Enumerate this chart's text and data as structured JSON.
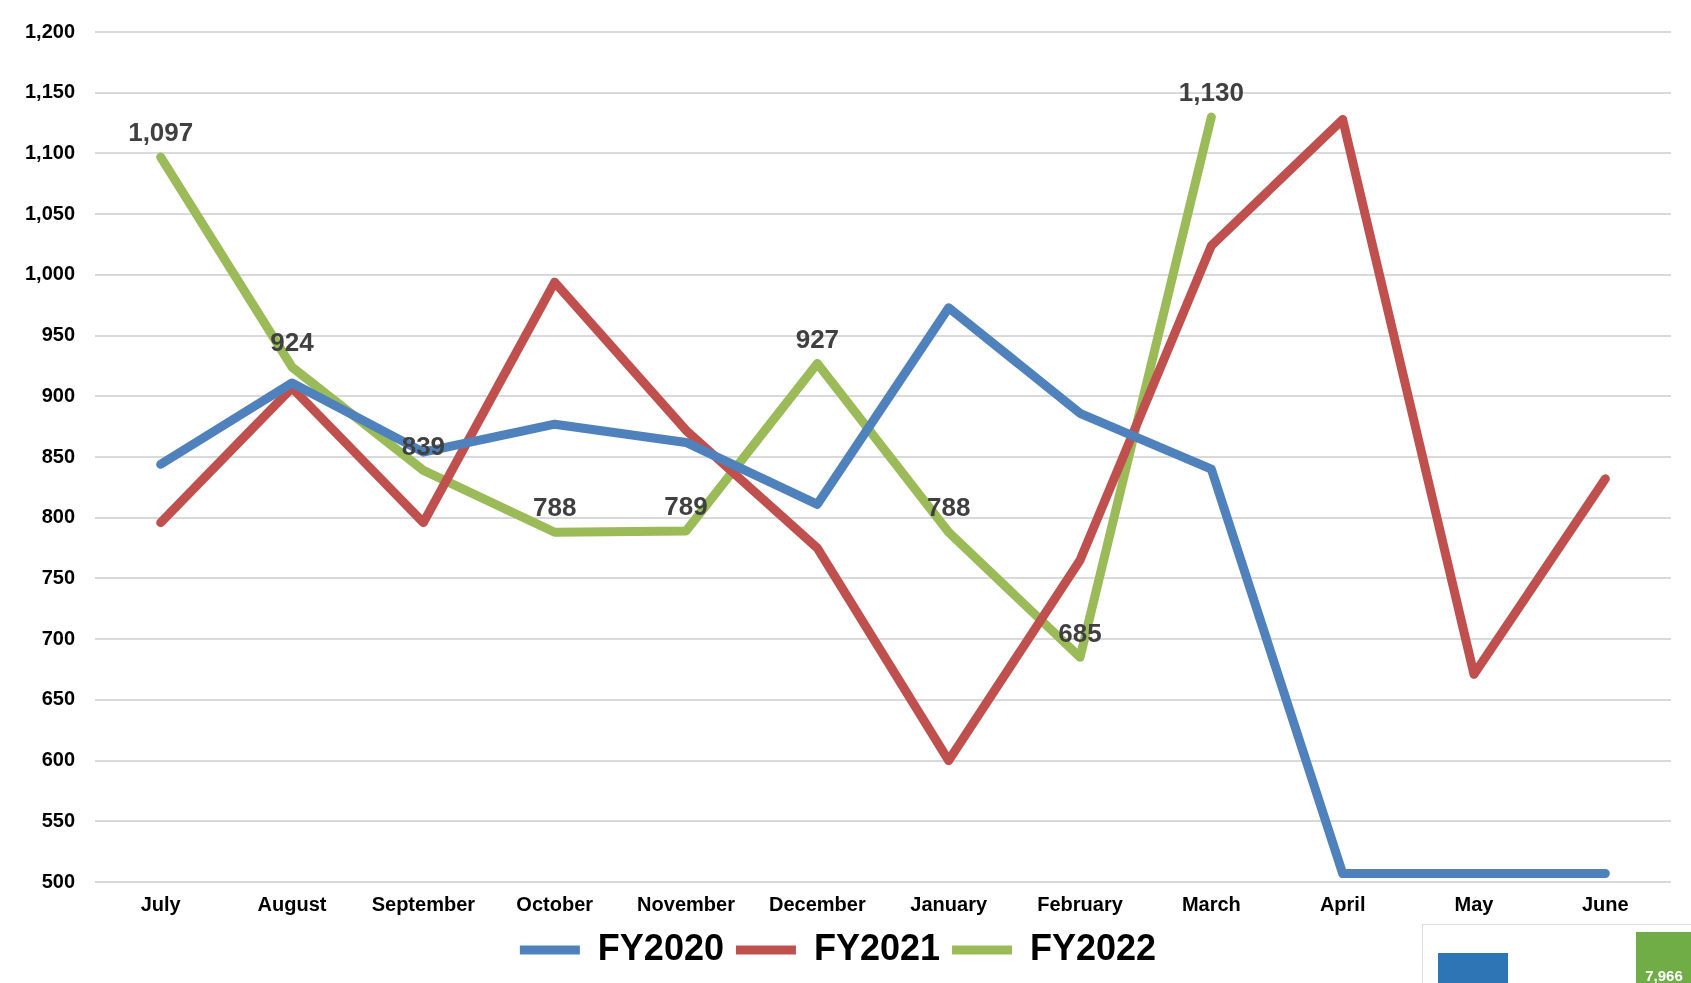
{
  "chart_data": {
    "type": "line",
    "categories": [
      "July",
      "August",
      "September",
      "October",
      "November",
      "December",
      "January",
      "February",
      "March",
      "April",
      "May",
      "June"
    ],
    "series": [
      {
        "name": "FY2020",
        "color": "#4f81bd",
        "values": [
          844,
          911,
          854,
          877,
          862,
          811,
          973,
          886,
          840,
          507,
          507,
          507
        ]
      },
      {
        "name": "FY2021",
        "color": "#c0504d",
        "values": [
          796,
          907,
          796,
          994,
          872,
          775,
          600,
          765,
          1024,
          1128,
          671,
          832
        ]
      },
      {
        "name": "FY2022",
        "color": "#9bbb59",
        "values": [
          1097,
          924,
          839,
          788,
          789,
          927,
          788,
          685,
          1130,
          null,
          null,
          null
        ],
        "value_labels": [
          "1,097",
          "924",
          "839",
          "788",
          "789",
          "927",
          "788",
          "685",
          "1,130",
          null,
          null,
          null
        ]
      }
    ],
    "ylim": [
      500,
      1200
    ],
    "yticks": [
      500,
      550,
      600,
      650,
      700,
      750,
      800,
      850,
      900,
      950,
      {
        "value": 1000,
        "label": "1,000"
      },
      {
        "value": 1050,
        "label": "1,050"
      },
      {
        "value": 1100,
        "label": "1,100"
      },
      {
        "value": 1150,
        "label": "1,150"
      },
      {
        "value": 1200,
        "label": "1,200"
      }
    ],
    "grid": "y",
    "legend": "bottom",
    "marker": "none",
    "line_style": "solid",
    "annotations": [
      "7,966"
    ]
  }
}
